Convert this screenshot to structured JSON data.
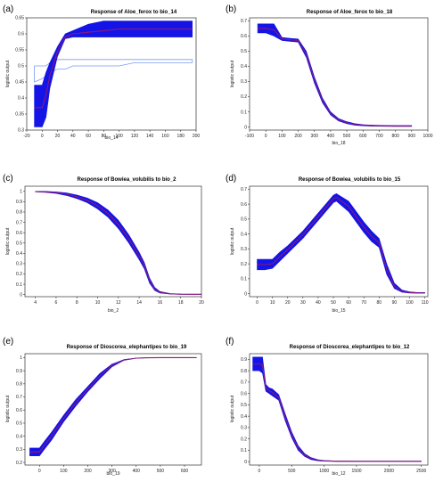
{
  "colors": {
    "band": "#1414e6",
    "median": "#8a1a7a",
    "mean_line": "#ff3333",
    "extra_band": "#7a9cf0",
    "axis": "#333333"
  },
  "chart_data": [
    {
      "label": "(a)",
      "type": "line",
      "title": "Response of Aloe_ferox to bio_14",
      "xlabel": "bio_14",
      "ylabel": "logistic output",
      "xlim": [
        -20,
        200
      ],
      "ylim": [
        0.3,
        0.65
      ],
      "xticks": [
        -20,
        0,
        20,
        40,
        60,
        80,
        100,
        120,
        140,
        160,
        180,
        200
      ],
      "yticks": [
        0.3,
        0.35,
        0.4,
        0.45,
        0.5,
        0.55,
        0.6,
        0.65
      ],
      "x": [
        -10,
        0,
        5,
        10,
        20,
        30,
        40,
        60,
        80,
        100,
        120,
        140,
        160,
        180,
        195
      ],
      "upper": [
        0.44,
        0.44,
        0.48,
        0.51,
        0.56,
        0.6,
        0.61,
        0.63,
        0.64,
        0.64,
        0.64,
        0.64,
        0.64,
        0.64,
        0.64
      ],
      "lower": [
        0.31,
        0.31,
        0.34,
        0.43,
        0.53,
        0.585,
        0.59,
        0.59,
        0.59,
        0.59,
        0.59,
        0.59,
        0.59,
        0.59,
        0.59
      ],
      "y": [
        0.37,
        0.37,
        0.41,
        0.47,
        0.545,
        0.59,
        0.6,
        0.605,
        0.61,
        0.615,
        0.615,
        0.615,
        0.615,
        0.615,
        0.615
      ],
      "extra_upper": [
        0.5,
        0.5,
        0.5,
        0.51,
        0.52,
        0.52,
        0.52,
        0.52,
        0.52,
        0.52,
        0.52,
        0.52,
        0.52,
        0.52,
        0.52
      ],
      "extra_lower": [
        0.45,
        0.46,
        0.47,
        0.48,
        0.49,
        0.49,
        0.5,
        0.5,
        0.5,
        0.5,
        0.51,
        0.51,
        0.51,
        0.51,
        0.51
      ]
    },
    {
      "label": "(b)",
      "type": "line",
      "title": "Response of Aloe_ferox to bio_18",
      "xlabel": "bio_18",
      "ylabel": "logistic output",
      "xlim": [
        -100,
        1000
      ],
      "ylim": [
        -0.02,
        0.72
      ],
      "xticks": [
        -100,
        0,
        100,
        200,
        300,
        400,
        500,
        600,
        700,
        800,
        900,
        1000
      ],
      "yticks": [
        0,
        0.1,
        0.2,
        0.3,
        0.4,
        0.5,
        0.6,
        0.7
      ],
      "x": [
        -50,
        0,
        50,
        100,
        150,
        200,
        250,
        300,
        350,
        400,
        450,
        500,
        550,
        600,
        650,
        700,
        800,
        900
      ],
      "upper": [
        0.68,
        0.68,
        0.68,
        0.59,
        0.585,
        0.58,
        0.5,
        0.33,
        0.19,
        0.1,
        0.055,
        0.035,
        0.022,
        0.016,
        0.013,
        0.011,
        0.01,
        0.01
      ],
      "lower": [
        0.62,
        0.62,
        0.6,
        0.57,
        0.565,
        0.56,
        0.46,
        0.29,
        0.16,
        0.08,
        0.04,
        0.022,
        0.012,
        0.008,
        0.006,
        0.005,
        0.004,
        0.004
      ],
      "y": [
        0.65,
        0.65,
        0.64,
        0.58,
        0.575,
        0.57,
        0.48,
        0.31,
        0.175,
        0.09,
        0.047,
        0.028,
        0.017,
        0.012,
        0.009,
        0.008,
        0.007,
        0.007
      ]
    },
    {
      "label": "(c)",
      "type": "line",
      "title": "Response of Bowiea_volubilis to bio_2",
      "xlabel": "bio_2",
      "ylabel": "logistic output",
      "xlim": [
        3,
        20
      ],
      "ylim": [
        -0.02,
        1.05
      ],
      "xticks": [
        4,
        6,
        8,
        10,
        12,
        14,
        16,
        18,
        20
      ],
      "yticks": [
        0,
        0.1,
        0.2,
        0.3,
        0.4,
        0.5,
        0.6,
        0.7,
        0.8,
        0.9,
        1.0
      ],
      "x": [
        4,
        5,
        6,
        7,
        8,
        9,
        10,
        11,
        12,
        13,
        14,
        14.5,
        15,
        15.5,
        16,
        17,
        18,
        19,
        20
      ],
      "upper": [
        1.0,
        1.0,
        0.995,
        0.985,
        0.965,
        0.935,
        0.89,
        0.82,
        0.72,
        0.58,
        0.41,
        0.31,
        0.16,
        0.07,
        0.03,
        0.01,
        0.005,
        0.004,
        0.004
      ],
      "lower": [
        0.995,
        0.99,
        0.98,
        0.96,
        0.93,
        0.89,
        0.83,
        0.75,
        0.64,
        0.5,
        0.34,
        0.25,
        0.11,
        0.04,
        0.015,
        0.005,
        0.002,
        0.002,
        0.002
      ],
      "y": [
        0.998,
        0.995,
        0.988,
        0.973,
        0.948,
        0.913,
        0.86,
        0.785,
        0.68,
        0.54,
        0.375,
        0.28,
        0.135,
        0.055,
        0.022,
        0.008,
        0.004,
        0.003,
        0.003
      ]
    },
    {
      "label": "(d)",
      "type": "line",
      "title": "Response of Bowiea_volubilis to bio_15",
      "xlabel": "bio_15",
      "ylabel": "logistic output",
      "xlim": [
        -5,
        112
      ],
      "ylim": [
        -0.02,
        0.72
      ],
      "xticks": [
        0,
        10,
        20,
        30,
        40,
        50,
        60,
        70,
        80,
        90,
        100,
        110
      ],
      "yticks": [
        0,
        0.1,
        0.2,
        0.3,
        0.4,
        0.5,
        0.6,
        0.7
      ],
      "x": [
        0,
        5,
        10,
        15,
        20,
        30,
        40,
        50,
        52,
        60,
        70,
        75,
        80,
        85,
        90,
        95,
        100,
        105,
        110
      ],
      "upper": [
        0.23,
        0.23,
        0.23,
        0.28,
        0.32,
        0.42,
        0.54,
        0.66,
        0.67,
        0.62,
        0.48,
        0.42,
        0.37,
        0.2,
        0.07,
        0.025,
        0.012,
        0.008,
        0.008
      ],
      "lower": [
        0.16,
        0.16,
        0.17,
        0.22,
        0.27,
        0.37,
        0.49,
        0.61,
        0.62,
        0.55,
        0.41,
        0.35,
        0.31,
        0.13,
        0.035,
        0.01,
        0.004,
        0.003,
        0.003
      ],
      "y": [
        0.195,
        0.195,
        0.2,
        0.25,
        0.295,
        0.395,
        0.515,
        0.635,
        0.645,
        0.585,
        0.445,
        0.385,
        0.34,
        0.165,
        0.05,
        0.017,
        0.008,
        0.005,
        0.005
      ]
    },
    {
      "label": "(e)",
      "type": "line",
      "title": "Response of Dioscorea_elephantipes to bio_19",
      "xlabel": "bio_19",
      "ylabel": "logistic output",
      "xlim": [
        -60,
        670
      ],
      "ylim": [
        0.18,
        1.03
      ],
      "xticks": [
        0,
        100,
        200,
        300,
        400,
        500,
        600
      ],
      "yticks": [
        0.2,
        0.3,
        0.4,
        0.5,
        0.6,
        0.7,
        0.8,
        0.9,
        1.0
      ],
      "x": [
        -40,
        0,
        20,
        50,
        100,
        150,
        200,
        250,
        300,
        350,
        400,
        450,
        500,
        550,
        600,
        650
      ],
      "upper": [
        0.31,
        0.31,
        0.36,
        0.43,
        0.56,
        0.68,
        0.78,
        0.88,
        0.95,
        0.985,
        0.997,
        1.0,
        1.0,
        1.0,
        1.0,
        1.0
      ],
      "lower": [
        0.25,
        0.25,
        0.3,
        0.37,
        0.51,
        0.63,
        0.74,
        0.84,
        0.93,
        0.98,
        0.995,
        0.999,
        1.0,
        1.0,
        1.0,
        1.0
      ],
      "y": [
        0.28,
        0.28,
        0.33,
        0.4,
        0.535,
        0.655,
        0.76,
        0.86,
        0.94,
        0.982,
        0.996,
        0.999,
        1.0,
        1.0,
        1.0,
        1.0
      ]
    },
    {
      "label": "(f)",
      "type": "line",
      "title": "Response of Dioscorea_elephantipes to bio_12",
      "xlabel": "bio_12",
      "ylabel": "logistic output",
      "xlim": [
        -150,
        2600
      ],
      "ylim": [
        -0.03,
        0.95
      ],
      "xticks": [
        0,
        500,
        1000,
        1500,
        2000,
        2500
      ],
      "yticks": [
        0,
        0.1,
        0.2,
        0.3,
        0.4,
        0.5,
        0.6,
        0.7,
        0.8,
        0.9
      ],
      "x": [
        -100,
        0,
        50,
        100,
        150,
        200,
        300,
        400,
        500,
        600,
        700,
        800,
        900,
        1000,
        1200,
        1500,
        2000,
        2500
      ],
      "upper": [
        0.92,
        0.92,
        0.92,
        0.68,
        0.65,
        0.64,
        0.59,
        0.42,
        0.26,
        0.14,
        0.07,
        0.035,
        0.018,
        0.01,
        0.006,
        0.005,
        0.005,
        0.005
      ],
      "lower": [
        0.8,
        0.8,
        0.78,
        0.62,
        0.6,
        0.58,
        0.54,
        0.36,
        0.21,
        0.1,
        0.045,
        0.018,
        0.008,
        0.004,
        0.002,
        0.001,
        0.001,
        0.001
      ],
      "y": [
        0.86,
        0.86,
        0.85,
        0.65,
        0.625,
        0.61,
        0.565,
        0.39,
        0.235,
        0.12,
        0.057,
        0.026,
        0.013,
        0.007,
        0.004,
        0.003,
        0.003,
        0.003
      ]
    }
  ]
}
